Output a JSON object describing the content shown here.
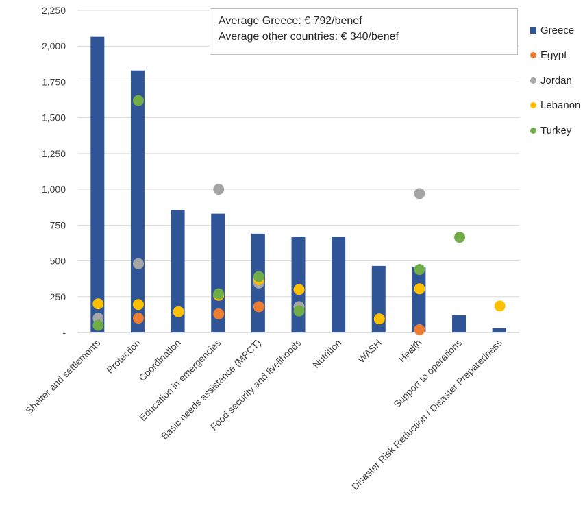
{
  "chart_data": {
    "type": "bar",
    "categories": [
      "Shelter and settlements",
      "Protection",
      "Coordination",
      "Education in emergencies",
      "Basic needs assistance (MPCT)",
      "Food security and livelihoods",
      "Nutrition",
      "WASH",
      "Health",
      "Support to operations",
      "Disaster Risk Reduction / Disaster Preparedness"
    ],
    "ylim": [
      0,
      2250
    ],
    "yticks": [
      0,
      250,
      500,
      750,
      1000,
      1250,
      1500,
      1750,
      2000,
      2250
    ],
    "ytick_labels": [
      "-",
      "250",
      "500",
      "750",
      "1,000",
      "1,250",
      "1,500",
      "1,750",
      "2,000",
      "2,250"
    ],
    "annotations": [
      "Average Greece: € 792/benef",
      "Average other countries: € 340/benef"
    ],
    "legend_position": "right",
    "grid": "horizontal",
    "series": [
      {
        "name": "Greece",
        "kind": "bar",
        "color": "#2f5597",
        "values": [
          2065,
          1830,
          855,
          830,
          690,
          670,
          670,
          465,
          460,
          120,
          30
        ]
      },
      {
        "name": "Egypt",
        "kind": "dot",
        "color": "#ed7d31",
        "values": [
          null,
          100,
          null,
          130,
          180,
          null,
          null,
          null,
          20,
          null,
          null
        ]
      },
      {
        "name": "Jordan",
        "kind": "dot",
        "color": "#a5a5a5",
        "values": [
          100,
          480,
          null,
          1000,
          345,
          180,
          null,
          null,
          970,
          null,
          null
        ]
      },
      {
        "name": "Lebanon",
        "kind": "dot",
        "color": "#ffc000",
        "values": [
          200,
          195,
          145,
          260,
          370,
          300,
          null,
          95,
          305,
          null,
          185
        ]
      },
      {
        "name": "Turkey",
        "kind": "dot",
        "color": "#70ad47",
        "values": [
          50,
          1620,
          null,
          270,
          390,
          150,
          null,
          null,
          440,
          665,
          null
        ]
      }
    ]
  }
}
